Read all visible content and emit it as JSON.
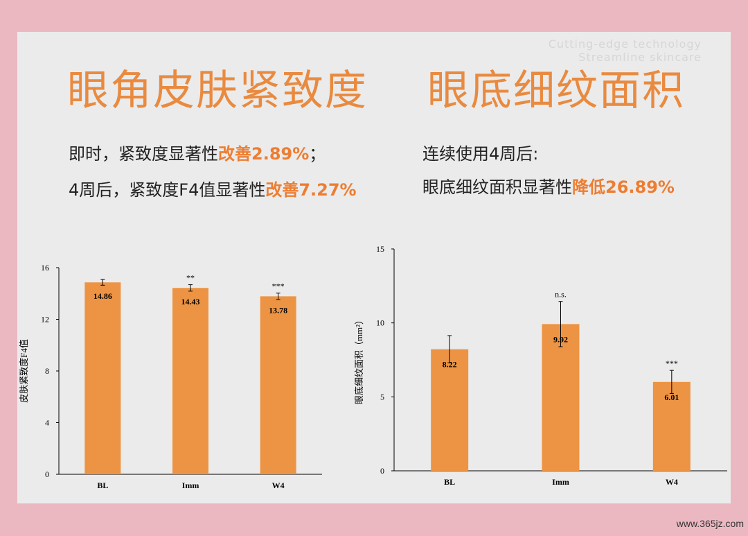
{
  "watermark": {
    "line1": "Cutting-edge technology",
    "line2": "Streamline skincare"
  },
  "left": {
    "title": "眼角皮肤紧致度",
    "line1_prefix": "即时，紧致度显著性",
    "line1_hl": "改善2.89%",
    "line1_suffix": "；",
    "line2_prefix": "4周后，紧致度F4值显著性",
    "line2_hl": "改善7.27%"
  },
  "right": {
    "title": "眼底细纹面积",
    "line1": "连续使用4周后:",
    "line2_prefix": "眼底细纹面积显著性",
    "line2_hl": "降低26.89%"
  },
  "footer": "www.365jz.com",
  "colors": {
    "bar": "#ed9444",
    "title": "#e98a3f",
    "highlight": "#ed7d31",
    "panel": "#ebebeb",
    "frame": "#ebb8c1"
  },
  "chart_data": [
    {
      "type": "bar",
      "categories": [
        "BL",
        "Imm",
        "W4"
      ],
      "values": [
        14.86,
        14.43,
        13.78
      ],
      "value_labels": [
        "14.86",
        "14.43",
        "13.78"
      ],
      "error": [
        0.22,
        0.25,
        0.25
      ],
      "significance": [
        "",
        "**",
        "***"
      ],
      "ylabel": "皮肤紧致度F4值",
      "xlabel": "",
      "ylim": [
        0,
        16
      ],
      "yticks": [
        0,
        4,
        8,
        12,
        16
      ],
      "grid": false
    },
    {
      "type": "bar",
      "categories": [
        "BL",
        "Imm",
        "W4"
      ],
      "values": [
        8.22,
        9.92,
        6.01
      ],
      "value_labels": [
        "8.22",
        "9.92",
        "6.01"
      ],
      "error": [
        0.92,
        1.53,
        0.78
      ],
      "significance": [
        "",
        "n.s.",
        "***"
      ],
      "ylabel": "眼底细纹面积（mm²）",
      "xlabel": "",
      "ylim": [
        0,
        15
      ],
      "yticks": [
        0,
        5,
        10,
        15
      ],
      "grid": false
    }
  ]
}
